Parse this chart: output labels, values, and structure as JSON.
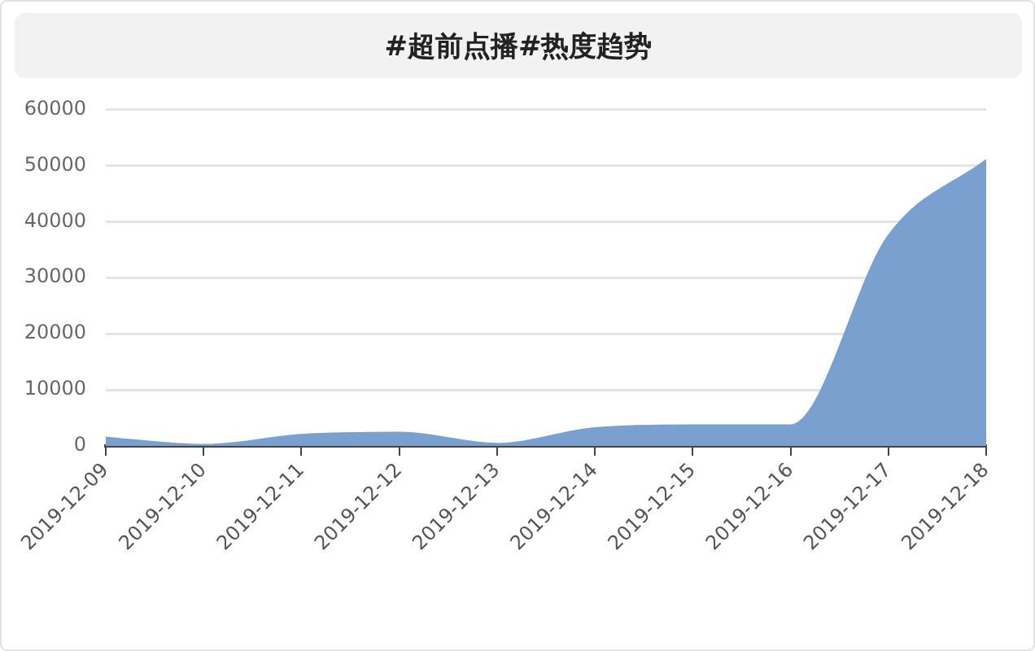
{
  "chart_data": {
    "type": "area",
    "title": "#超前点播#热度趋势",
    "categories": [
      "2019-12-09",
      "2019-12-10",
      "2019-12-11",
      "2019-12-12",
      "2019-12-13",
      "2019-12-14",
      "2019-12-15",
      "2019-12-16",
      "2019-12-17",
      "2019-12-18"
    ],
    "values": [
      1500,
      200,
      2000,
      2400,
      400,
      3200,
      3700,
      3700,
      37500,
      51000
    ],
    "color": "#7aa0d0",
    "ylim": [
      0,
      60000
    ],
    "yticks": [
      0,
      10000,
      20000,
      30000,
      40000,
      50000,
      60000
    ],
    "grid": "y"
  }
}
